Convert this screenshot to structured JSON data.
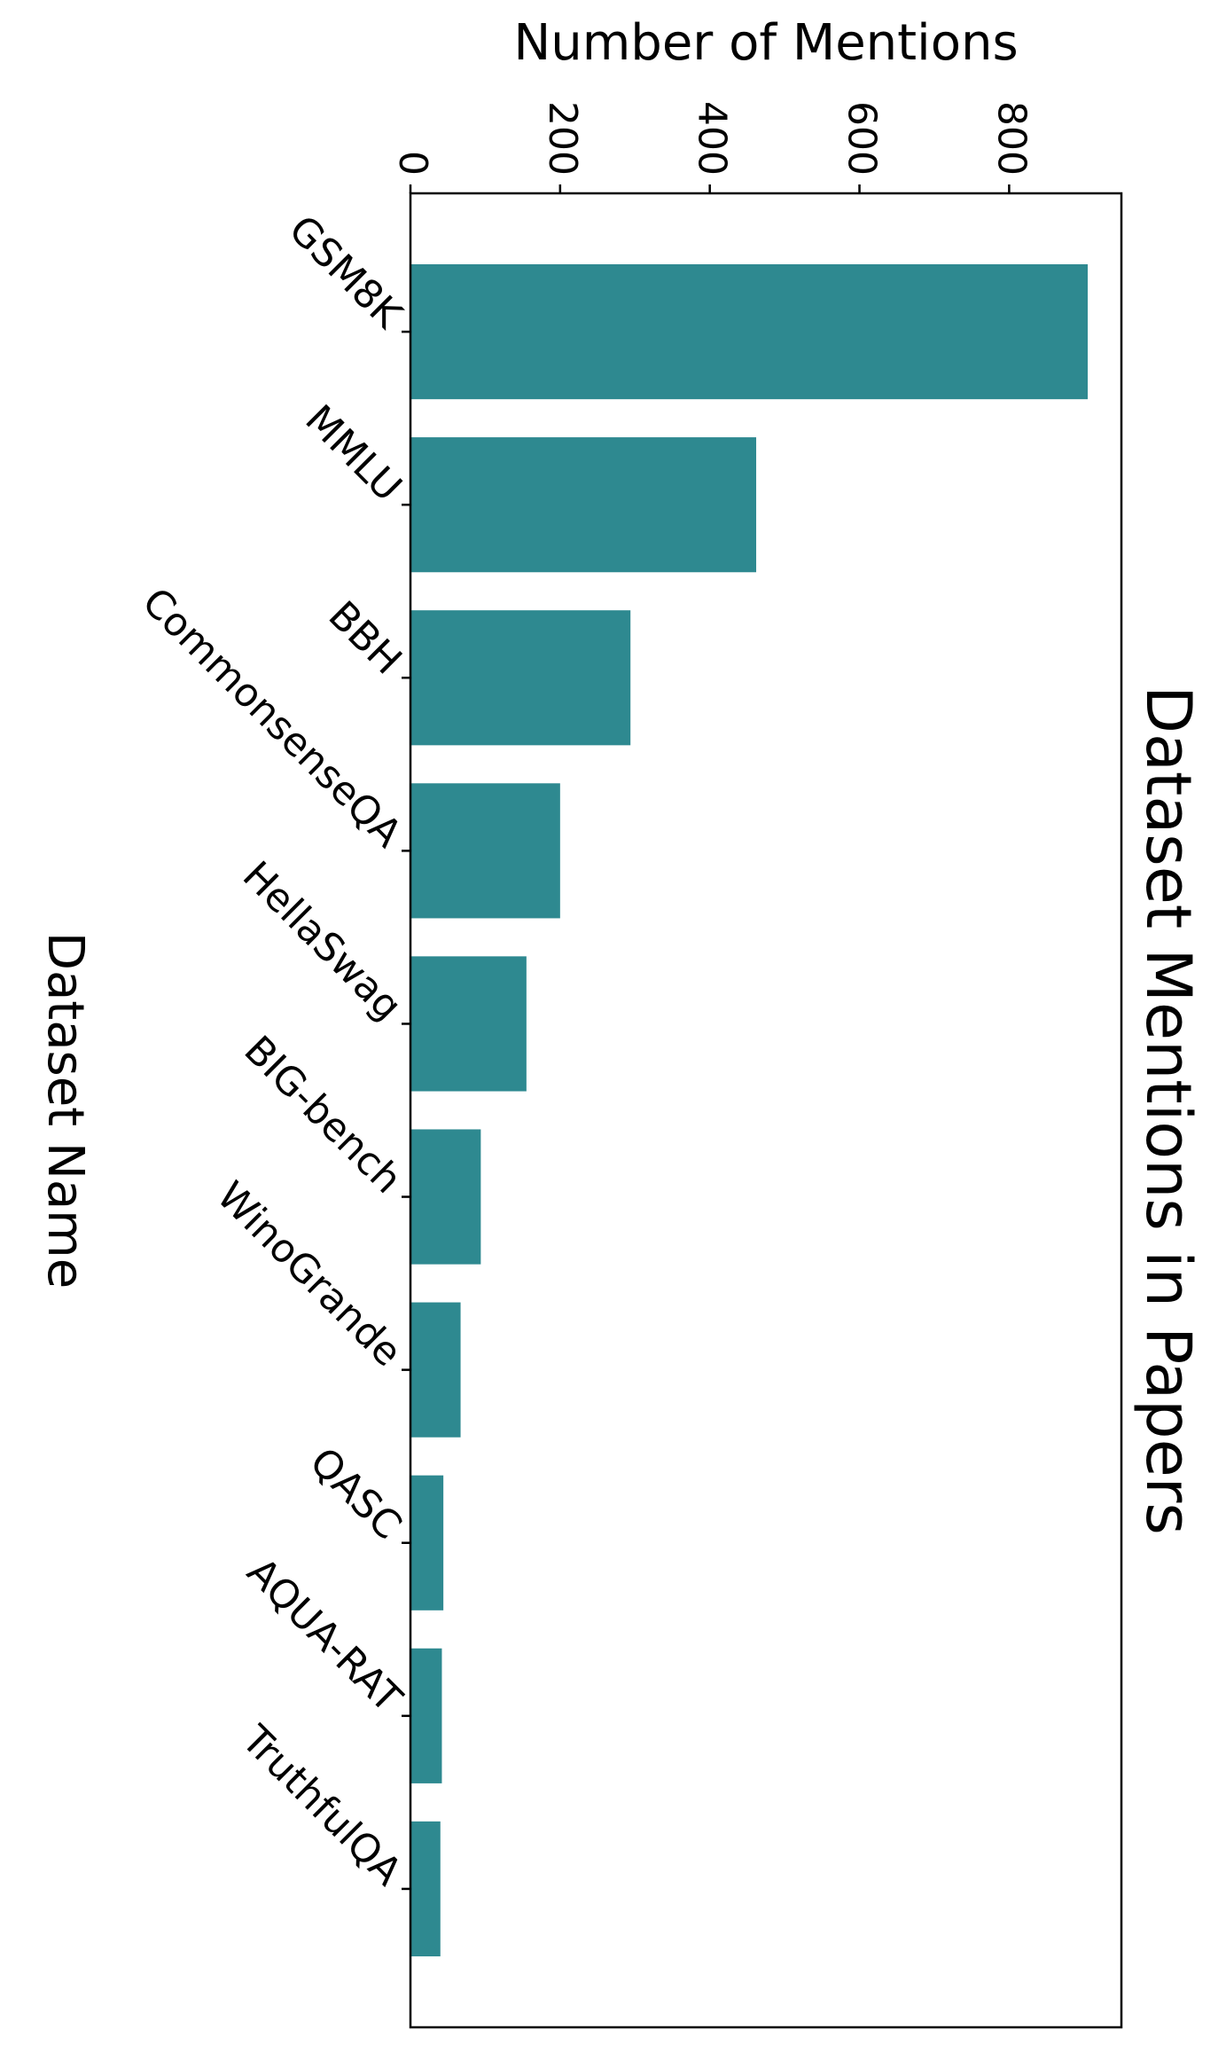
{
  "chart_data": {
    "type": "bar",
    "title": "Dataset Mentions in Papers",
    "xlabel": "Dataset Name",
    "ylabel": "Number of Mentions",
    "categories": [
      "GSM8K",
      "MMLU",
      "BBH",
      "CommonsenseQA",
      "HellaSwag",
      "BIG-bench",
      "WinoGrande",
      "QASC",
      "AQUA-RAT",
      "TruthfulQA"
    ],
    "values": [
      905,
      462,
      294,
      200,
      155,
      94,
      67,
      44,
      42,
      40
    ],
    "ylim": [
      0,
      950
    ],
    "yticks": [
      0,
      200,
      400,
      600,
      800
    ],
    "orientation": "figure rotated 90 degrees clockwise",
    "grid": false,
    "legend": "none",
    "bar_color": "#2e8990"
  }
}
